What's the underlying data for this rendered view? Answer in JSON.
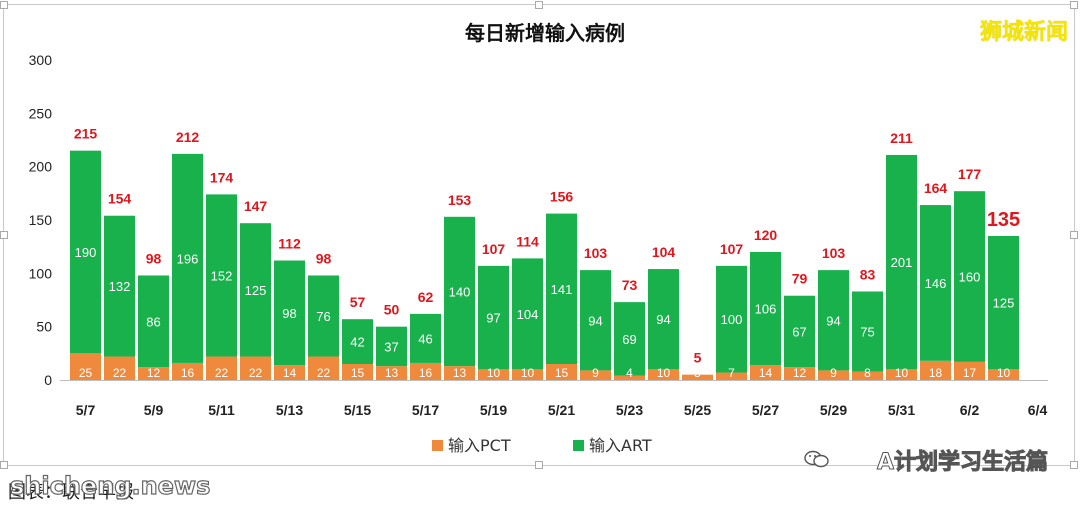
{
  "brand_label": "狮城新闻",
  "watermark": "A计划学习生活篇",
  "source_text": "图表：联合早报",
  "site_text": "shicheng.news",
  "colors": {
    "pct": "#ef8a3c",
    "art": "#18b14c",
    "value_label": "#e0161d",
    "axis_text": "#222222",
    "gridline": "#e6e6e6"
  },
  "chart_data": {
    "type": "bar",
    "stacked": true,
    "title": "每日新增输入病例",
    "categories": [
      "5/7",
      "5/8",
      "5/9",
      "5/10",
      "5/11",
      "5/12",
      "5/13",
      "5/14",
      "5/15",
      "5/16",
      "5/17",
      "5/18",
      "5/19",
      "5/20",
      "5/21",
      "5/22",
      "5/23",
      "5/24",
      "5/25",
      "5/26",
      "5/27",
      "5/28",
      "5/29",
      "5/30",
      "5/31",
      "6/1",
      "6/2",
      "6/3"
    ],
    "x_tick_labels": [
      "5/7",
      "5/9",
      "5/11",
      "5/13",
      "5/15",
      "5/17",
      "5/19",
      "5/21",
      "5/23",
      "5/25",
      "5/27",
      "5/29",
      "5/31",
      "6/2",
      "6/4"
    ],
    "series": [
      {
        "name": "输入PCT",
        "color": "#ef8a3c",
        "values": [
          25,
          22,
          12,
          16,
          22,
          22,
          14,
          22,
          15,
          13,
          16,
          13,
          10,
          10,
          15,
          9,
          4,
          10,
          5,
          7,
          14,
          12,
          9,
          8,
          10,
          18,
          17,
          10
        ],
        "labels": [
          "25",
          "22",
          "12",
          "16",
          "22",
          "22",
          "14",
          "22",
          "15",
          "13",
          "16",
          "13",
          "10",
          "10",
          "15",
          "9",
          "4",
          "10",
          "5",
          "7",
          "14",
          "12",
          "9",
          "8",
          "10",
          "18",
          "17",
          "10"
        ]
      },
      {
        "name": "输入ART",
        "color": "#18b14c",
        "values": [
          190,
          132,
          86,
          196,
          152,
          125,
          98,
          76,
          42,
          37,
          46,
          140,
          97,
          104,
          141,
          94,
          69,
          94,
          0,
          100,
          106,
          67,
          94,
          75,
          201,
          146,
          160,
          125
        ],
        "labels": [
          "190",
          "132",
          "86",
          "196",
          "152",
          "125",
          "98",
          "76",
          "42",
          "37",
          "46",
          "140",
          "97",
          "104",
          "141",
          "94",
          "69",
          "94",
          "",
          "100",
          "106",
          "67",
          "94",
          "75",
          "201",
          "146",
          "160",
          "125"
        ]
      }
    ],
    "totals": [
      215,
      154,
      98,
      212,
      174,
      147,
      112,
      98,
      57,
      50,
      62,
      153,
      107,
      114,
      156,
      103,
      73,
      104,
      5,
      107,
      120,
      79,
      103,
      83,
      211,
      164,
      177,
      135
    ],
    "total_labels": [
      "215",
      "154",
      "98",
      "212",
      "174",
      "147",
      "112",
      "98",
      "57",
      "50",
      "62",
      "153",
      "107",
      "114",
      "156",
      "103",
      "73",
      "104",
      "5",
      "107",
      "120",
      "79",
      "103",
      "83",
      "211",
      "164",
      "177",
      "135"
    ],
    "highlight_last_total": true,
    "ylim": [
      0,
      300
    ],
    "y_ticks": [
      "0",
      "50",
      "100",
      "150",
      "200",
      "250",
      "300"
    ],
    "grid": false,
    "legend_position": "bottom-center",
    "legend": [
      {
        "label": "输入PCT",
        "color": "#ef8a3c"
      },
      {
        "label": "输入ART",
        "color": "#18b14c"
      }
    ]
  }
}
